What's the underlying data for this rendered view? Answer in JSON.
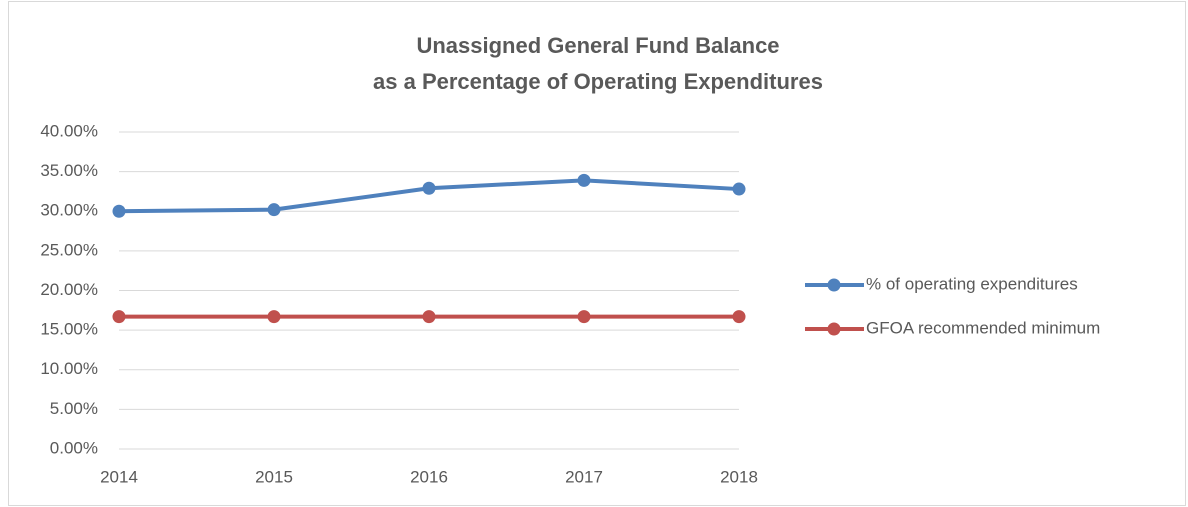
{
  "chart_data": {
    "type": "line",
    "title": [
      "Unassigned General Fund Balance",
      "as a Percentage of Operating Expenditures"
    ],
    "x": [
      2014,
      2015,
      2016,
      2017,
      2018
    ],
    "xlim": [
      2014,
      2018
    ],
    "xticks": [
      2014,
      2015,
      2016,
      2017,
      2018
    ],
    "ylim": [
      0,
      40
    ],
    "yticks": [
      {
        "value": 0,
        "label": "0.00%"
      },
      {
        "value": 5,
        "label": "5.00%"
      },
      {
        "value": 10,
        "label": "10.00%"
      },
      {
        "value": 15,
        "label": "15.00%"
      },
      {
        "value": 20,
        "label": "20.00%"
      },
      {
        "value": 25,
        "label": "25.00%"
      },
      {
        "value": 30,
        "label": "30.00%"
      },
      {
        "value": 35,
        "label": "35.00%"
      },
      {
        "value": 40,
        "label": "40.00%"
      }
    ],
    "grid": true,
    "legend": "right",
    "series": [
      {
        "name": "% of operating expenditures",
        "color": "#4f81bd",
        "values": [
          30.0,
          30.2,
          32.9,
          33.9,
          32.8
        ]
      },
      {
        "name": "GFOA recommended minimum",
        "color": "#c0504d",
        "values": [
          16.7,
          16.7,
          16.7,
          16.7,
          16.7
        ]
      }
    ]
  }
}
